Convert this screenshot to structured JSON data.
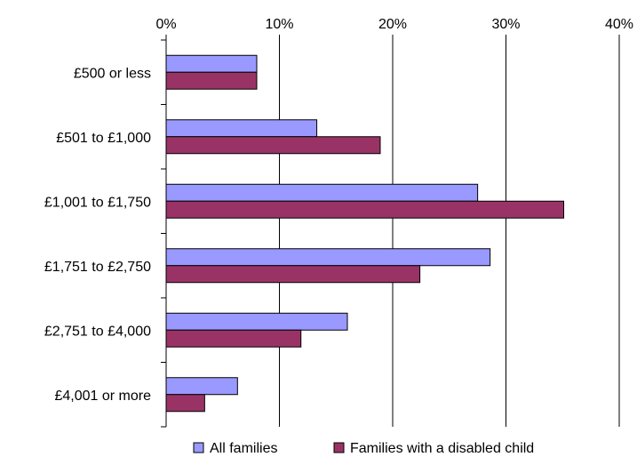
{
  "chart_data": {
    "type": "bar",
    "orientation": "horizontal",
    "categories": [
      "£500 or less",
      "£501 to £1,000",
      "£1,001 to £1,750",
      "£1,751 to £2,750",
      "£2,751 to £4,000",
      "£4,001 or more"
    ],
    "series": [
      {
        "name": "All families",
        "values": [
          8,
          13.3,
          27.5,
          28.6,
          16,
          6.3
        ],
        "color": "#9999ff"
      },
      {
        "name": "Families with a disabled child",
        "values": [
          8,
          18.9,
          35.1,
          22.4,
          11.9,
          3.4
        ],
        "color": "#993366"
      }
    ],
    "xlim": [
      0,
      40
    ],
    "x_ticks": [
      "0%",
      "10%",
      "20%",
      "30%",
      "40%"
    ],
    "x_axis_position": "top",
    "grid": true,
    "legend_position": "bottom"
  }
}
